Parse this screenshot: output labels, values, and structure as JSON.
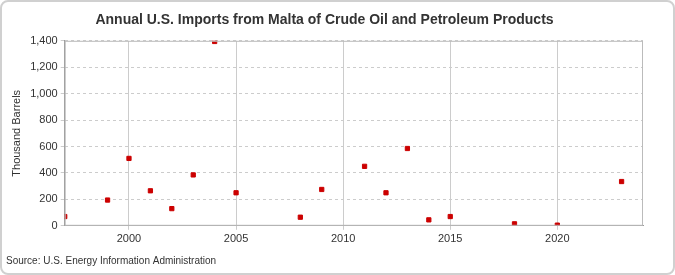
{
  "chart_data": {
    "type": "scatter",
    "title": "Annual U.S. Imports from Malta of Crude Oil and Petroleum Products",
    "y_label": "Thousand Barrels",
    "source": "Source: U.S. Energy Information Administration",
    "x": [
      1997,
      1999,
      2000,
      2001,
      2002,
      2003,
      2004,
      2005,
      2008,
      2009,
      2011,
      2012,
      2013,
      2014,
      2015,
      2018,
      2020,
      2023
    ],
    "values": [
      70,
      195,
      510,
      265,
      130,
      385,
      1395,
      250,
      65,
      275,
      450,
      250,
      585,
      45,
      70,
      15,
      5,
      335
    ],
    "color": "#cc0000",
    "marker": "square",
    "xlim": [
      1997,
      2024
    ],
    "xticks": [
      2000,
      2005,
      2010,
      2015,
      2020
    ],
    "ylim": [
      0,
      1400
    ],
    "yticks": [
      0,
      200,
      400,
      600,
      800,
      {
        "value": 1000,
        "label": "1,000"
      },
      {
        "value": 1200,
        "label": "1,200"
      },
      {
        "value": 1400,
        "label": "1,400"
      }
    ],
    "grid": true
  }
}
